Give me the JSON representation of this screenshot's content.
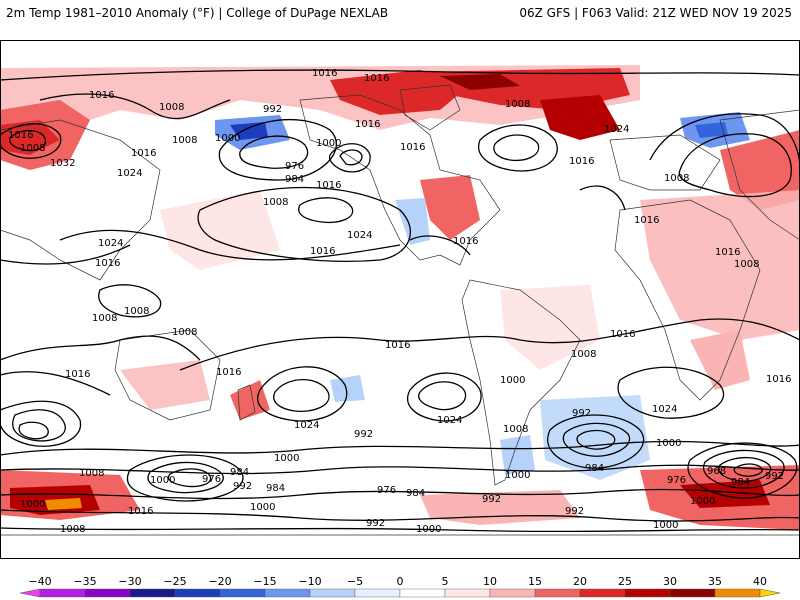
{
  "header": {
    "title": "2m Temp 1981–2010 Anomaly (°F) | College of DuPage NEXLAB",
    "run_info": "06Z GFS | F063 Valid: 21Z WED NOV 19 2025"
  },
  "isobar_labels": {
    "l01": "1016",
    "l02": "1016",
    "l03": "1016",
    "l04": "1008",
    "l05": "992",
    "l06": "1008",
    "l07": "1016",
    "l08": "1008",
    "l09": "1016",
    "l10": "1000",
    "l11": "1008",
    "l12": "1032",
    "l13": "1024",
    "l14": "1016",
    "l15": "1000",
    "l16": "976",
    "l17": "984",
    "l18": "1016",
    "l19": "1008",
    "l20": "1016",
    "l21": "1024",
    "l22": "1016",
    "l23": "1024",
    "l24": "1016",
    "l25": "1024",
    "l26": "1016",
    "l27": "1008",
    "l28": "1008",
    "l29": "1016",
    "l30": "1016",
    "l31": "1008",
    "l32": "1008",
    "l33": "1016",
    "l34": "1016",
    "l35": "1016",
    "l36": "1024",
    "l37": "1016",
    "l38": "1008",
    "l39": "1016",
    "l40": "1008",
    "l41": "1000",
    "l42": "1024",
    "l43": "992",
    "l44": "1008",
    "l45": "1000",
    "l46": "992",
    "l47": "984",
    "l48": "1000",
    "l49": "984",
    "l50": "1024",
    "l51": "1000",
    "l52": "968",
    "l53": "1000",
    "l54": "984",
    "l55": "992",
    "l56": "1008",
    "l57": "1000",
    "l58": "976",
    "l59": "992",
    "l60": "984",
    "l61": "1016",
    "l62": "1000",
    "l63": "976",
    "l64": "984",
    "l65": "992",
    "l66": "992",
    "l67": "992",
    "l68": "1000",
    "l69": "1000",
    "l70": "1008",
    "l71": "1000",
    "l72": "1016",
    "l73": "976"
  },
  "legend": {
    "ticks": [
      "-40",
      "-35",
      "-30",
      "-25",
      "-20",
      "-15",
      "-10",
      "-5",
      "0",
      "5",
      "10",
      "15",
      "20",
      "25",
      "30",
      "35",
      "40"
    ],
    "colors": [
      "#f23cf2",
      "#b41ee6",
      "#8c00c8",
      "#1a1a8c",
      "#1e3cbe",
      "#3264dc",
      "#6e96f0",
      "#b4d2fa",
      "#e6f0ff",
      "#ffffff",
      "#ffe6e6",
      "#fab4b4",
      "#f06464",
      "#dc2828",
      "#b40000",
      "#8c0000",
      "#f08c00",
      "#ffd200"
    ]
  }
}
